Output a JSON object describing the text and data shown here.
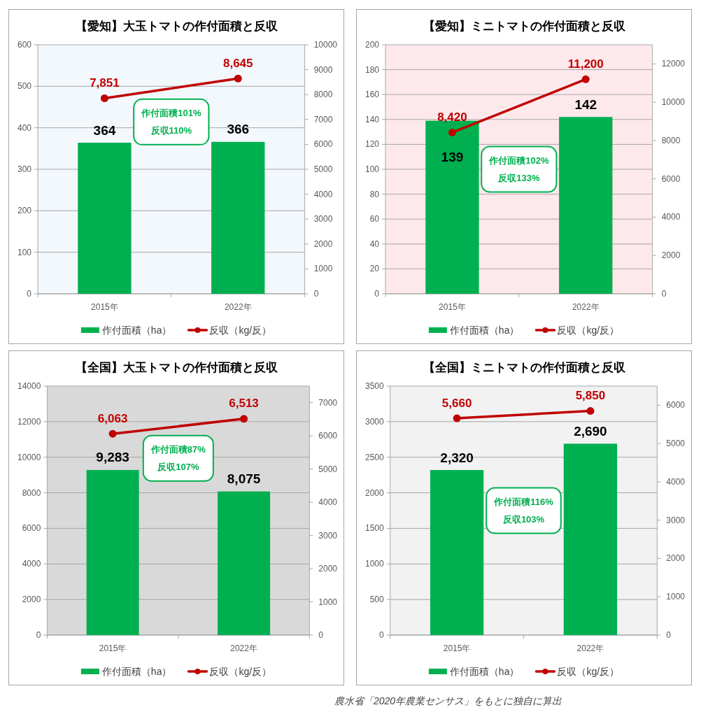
{
  "chart_data": [
    {
      "type": "bar",
      "title": "【愛知】大玉トマトの作付面積と反収",
      "categories": [
        "2015年",
        "2022年"
      ],
      "series": [
        {
          "name": "作付面積（ha）",
          "type": "bar",
          "color": "#00b050",
          "values": [
            364,
            366
          ],
          "value_labels": [
            "364",
            "366"
          ]
        },
        {
          "name": "反収（kg/反）",
          "type": "line",
          "axis": "y2",
          "color": "#c00000",
          "values": [
            7851,
            8645
          ],
          "value_labels": [
            "7,851",
            "8,645"
          ]
        }
      ],
      "ylim": [
        0,
        600
      ],
      "yticks": [
        0,
        100,
        200,
        300,
        400,
        500,
        600
      ],
      "y2lim": [
        0,
        10000
      ],
      "y2ticks": [
        0,
        1000,
        2000,
        3000,
        4000,
        5000,
        6000,
        7000,
        8000,
        9000,
        10000
      ],
      "grid": "y",
      "legend": "bottom",
      "marker": "circle",
      "annotations": [
        "作付面積101%",
        "反収110%"
      ]
    },
    {
      "type": "bar",
      "title": "【愛知】ミニトマトの作付面積と反収",
      "categories": [
        "2015年",
        "2022年"
      ],
      "series": [
        {
          "name": "作付面積（ha）",
          "type": "bar",
          "color": "#00b050",
          "values": [
            139,
            142
          ],
          "value_labels": [
            "139",
            "142"
          ]
        },
        {
          "name": "反収（kg/反）",
          "type": "line",
          "axis": "y2",
          "color": "#c00000",
          "values": [
            8420,
            11200
          ],
          "value_labels": [
            "8,420",
            "11,200"
          ]
        }
      ],
      "ylim": [
        0,
        200
      ],
      "yticks": [
        0,
        20,
        40,
        60,
        80,
        100,
        120,
        140,
        160,
        180,
        200
      ],
      "y2lim": [
        0,
        13000
      ],
      "y2ticks": [
        0,
        2000,
        4000,
        6000,
        8000,
        10000,
        12000
      ],
      "grid": "y",
      "legend": "bottom",
      "marker": "circle",
      "annotations": [
        "作付面積102%",
        "反収133%"
      ]
    },
    {
      "type": "bar",
      "title": "【全国】大玉トマトの作付面積と反収",
      "categories": [
        "2015年",
        "2022年"
      ],
      "series": [
        {
          "name": "作付面積（ha）",
          "type": "bar",
          "color": "#00b050",
          "values": [
            9283,
            8075
          ],
          "value_labels": [
            "9,283",
            "8,075"
          ]
        },
        {
          "name": "反収（kg/反）",
          "type": "line",
          "axis": "y2",
          "color": "#c00000",
          "values": [
            6063,
            6513
          ],
          "value_labels": [
            "6,063",
            "6,513"
          ]
        }
      ],
      "ylim": [
        0,
        14000
      ],
      "yticks": [
        0,
        2000,
        4000,
        6000,
        8000,
        10000,
        12000,
        14000
      ],
      "y2lim": [
        0,
        7500
      ],
      "y2ticks": [
        0,
        1000,
        2000,
        3000,
        4000,
        5000,
        6000,
        7000
      ],
      "grid": "y",
      "legend": "bottom",
      "marker": "circle",
      "annotations": [
        "作付面積87%",
        "反収107%"
      ]
    },
    {
      "type": "bar",
      "title": "【全国】ミニトマトの作付面積と反収",
      "categories": [
        "2015年",
        "2022年"
      ],
      "series": [
        {
          "name": "作付面積（ha）",
          "type": "bar",
          "color": "#00b050",
          "values": [
            2320,
            2690
          ],
          "value_labels": [
            "2,320",
            "2,690"
          ]
        },
        {
          "name": "反収（kg/反）",
          "type": "line",
          "axis": "y2",
          "color": "#c00000",
          "values": [
            5660,
            5850
          ],
          "value_labels": [
            "5,660",
            "5,850"
          ]
        }
      ],
      "ylim": [
        0,
        3500
      ],
      "yticks": [
        0,
        500,
        1000,
        1500,
        2000,
        2500,
        3000,
        3500
      ],
      "y2lim": [
        0,
        6500
      ],
      "y2ticks": [
        0,
        1000,
        2000,
        3000,
        4000,
        5000,
        6000
      ],
      "grid": "y",
      "legend": "bottom",
      "marker": "circle",
      "annotations": [
        "作付面積116%",
        "反収103%"
      ]
    },
    {
      "type": "other",
      "annotations": [
        "農水省「2020年農業センサス」をもとに独自に算出"
      ]
    }
  ]
}
